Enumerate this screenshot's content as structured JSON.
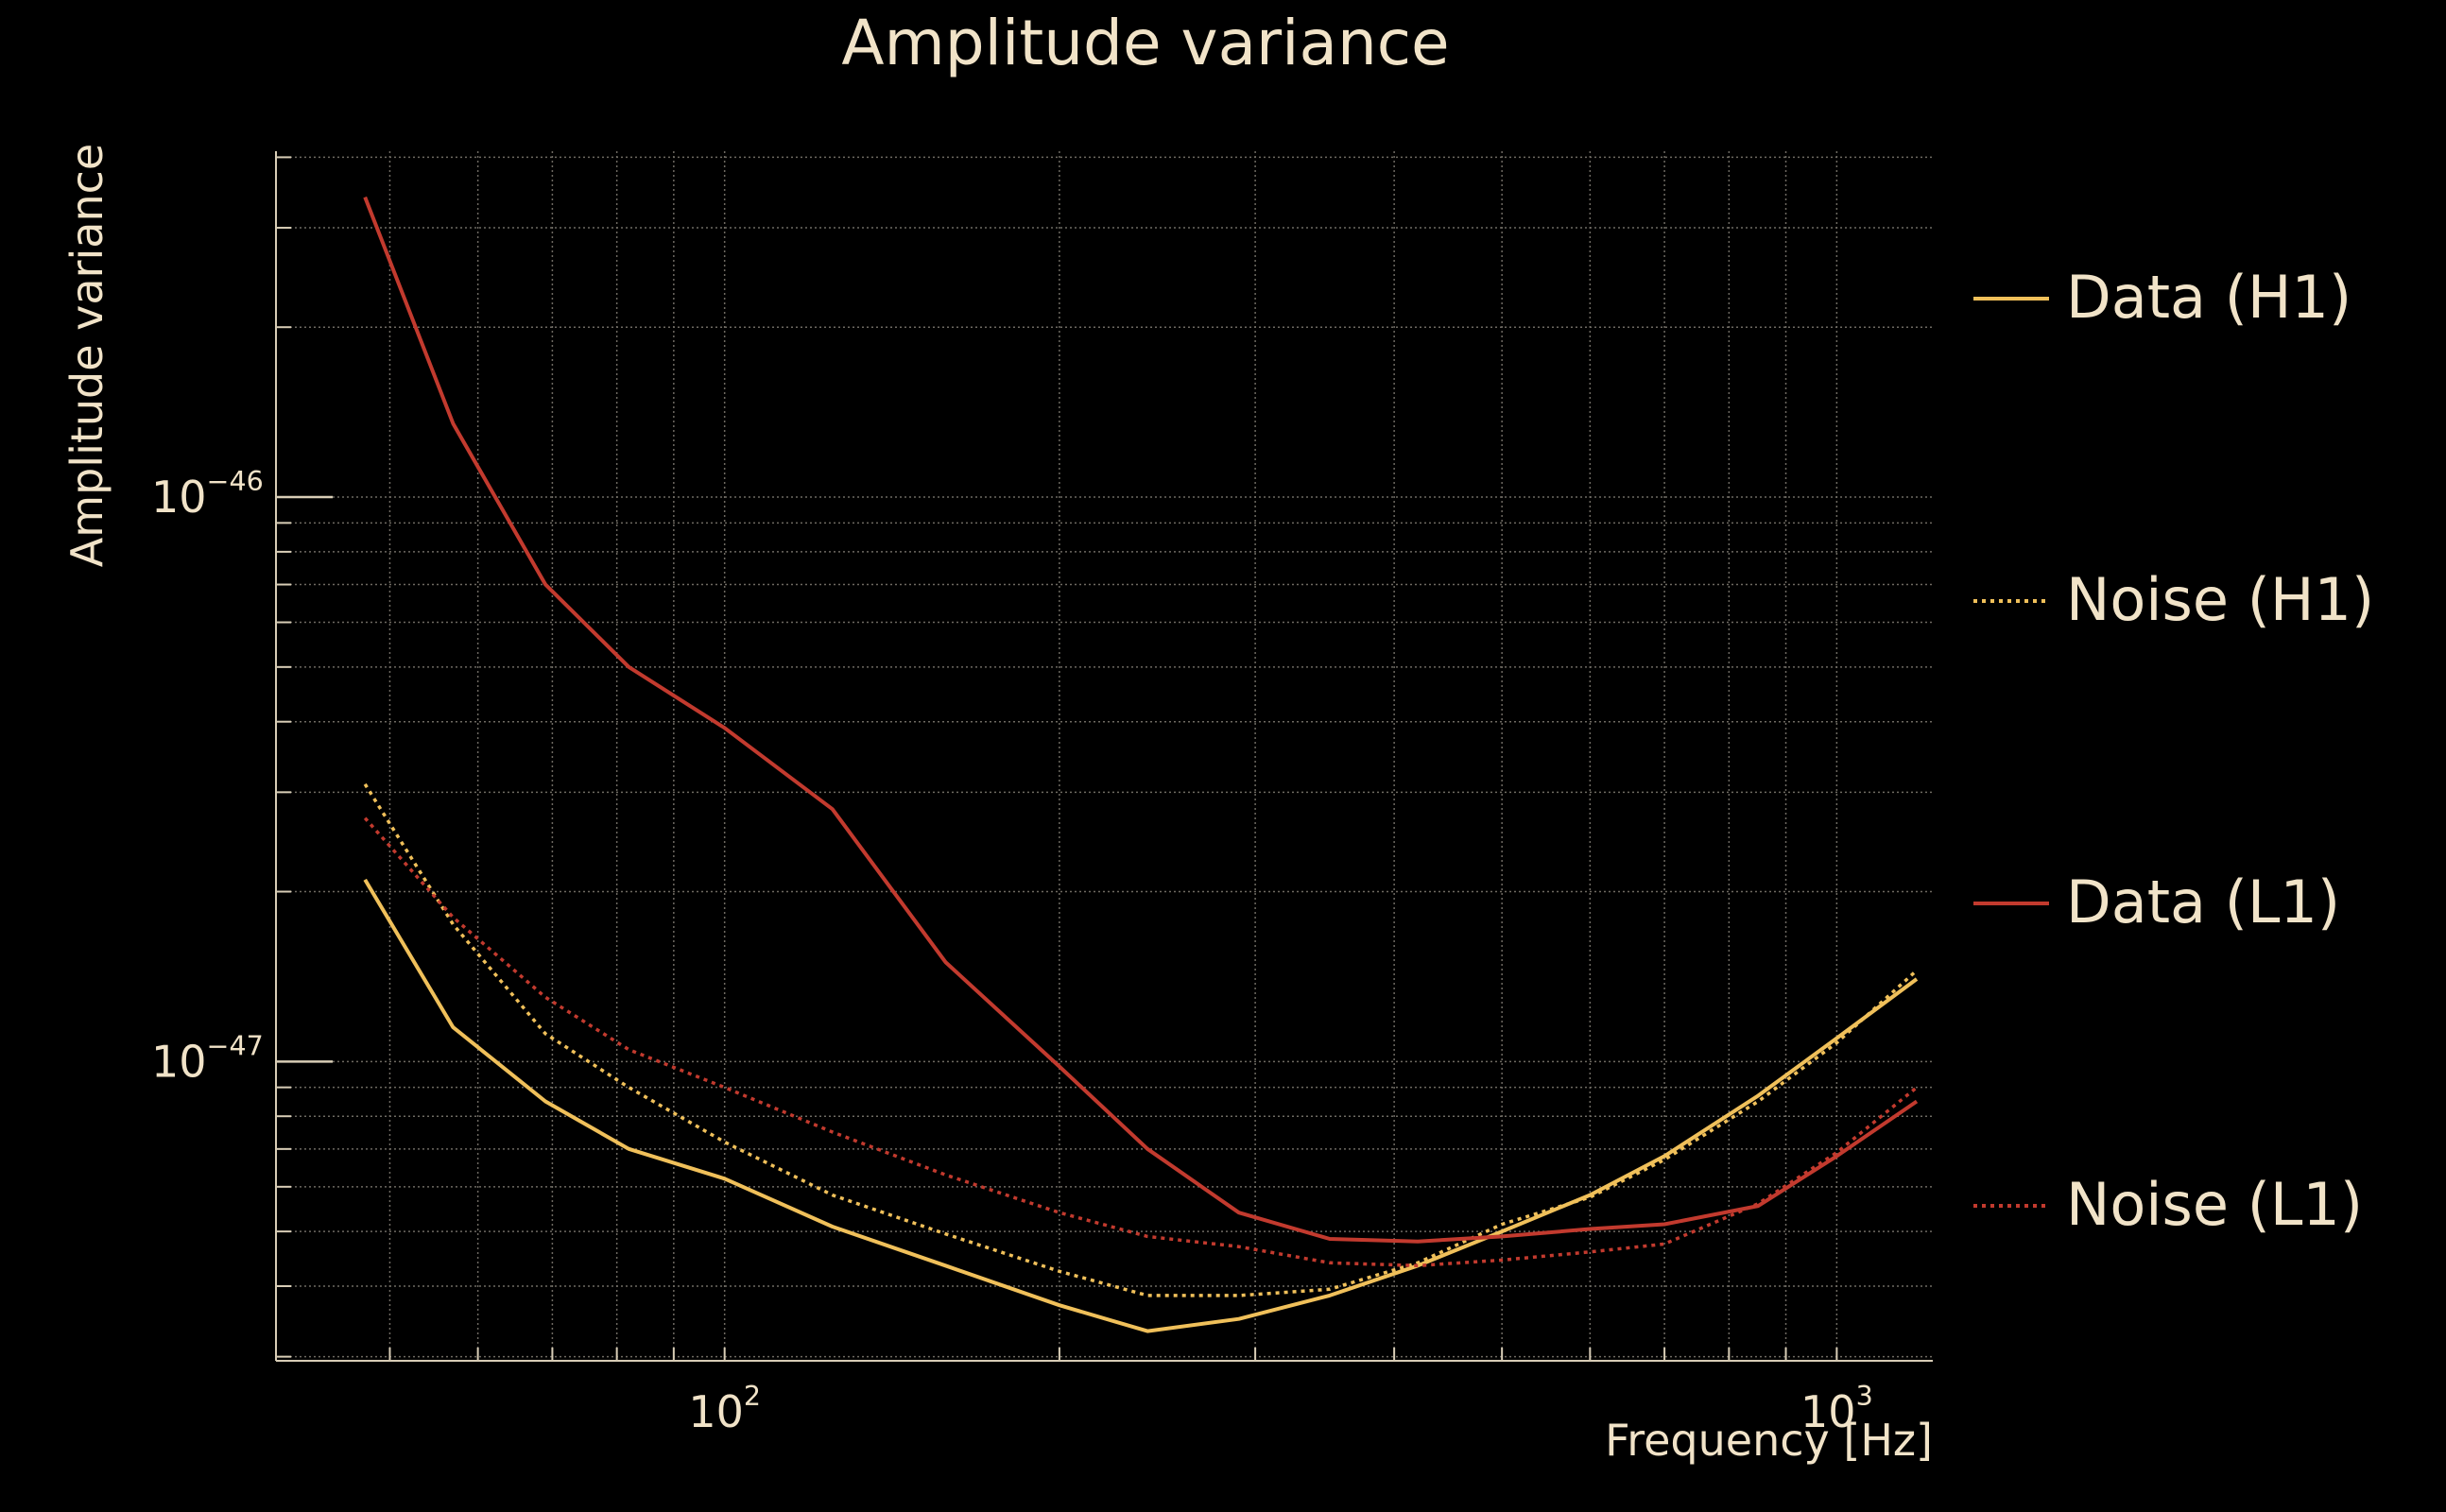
{
  "chart_data": {
    "type": "line",
    "title": "Amplitude variance",
    "xlabel": "Frequency [Hz]",
    "ylabel": "Amplitude variance",
    "x_scale": "log",
    "y_scale": "log",
    "xlim": [
      39.5,
      1220
    ],
    "ylim": [
      2.95e-48,
      4.1e-46
    ],
    "grid": true,
    "legend_position": "right",
    "x_major_ticks": [
      {
        "value": 100,
        "base": "10",
        "exp": "2"
      },
      {
        "value": 1000,
        "base": "10",
        "exp": "3"
      }
    ],
    "y_major_ticks": [
      {
        "value": 1e-47,
        "base": "10",
        "exp": "−47"
      },
      {
        "value": 1e-46,
        "base": "10",
        "exp": "−46"
      }
    ],
    "x_minor_ticks": [
      50,
      60,
      70,
      80,
      90,
      200,
      300,
      400,
      500,
      600,
      700,
      800,
      900
    ],
    "y_minor_ticks": [
      3e-48,
      4e-48,
      5e-48,
      6e-48,
      7e-48,
      8e-48,
      9e-48,
      2e-47,
      3e-47,
      4e-47,
      5e-47,
      6e-47,
      7e-47,
      8e-47,
      9e-47,
      2e-46,
      3e-46,
      4e-46
    ],
    "series": [
      {
        "name": "Data (H1)",
        "color": "#f0c05a",
        "dash": "solid",
        "x": [
          47.5,
          57,
          69,
          82,
          100,
          125,
          158,
          200,
          240,
          290,
          350,
          420,
          500,
          600,
          700,
          850,
          1000,
          1180
        ],
        "y": [
          2.1e-47,
          1.15e-47,
          8.5e-48,
          7e-48,
          6.2e-48,
          5.1e-48,
          4.35e-48,
          3.7e-48,
          3.33e-48,
          3.5e-48,
          3.85e-48,
          4.35e-48,
          5e-48,
          5.8e-48,
          6.8e-48,
          8.7e-48,
          1.1e-47,
          1.4e-47
        ]
      },
      {
        "name": "Noise (H1)",
        "color": "#f0c05a",
        "dash": "dotted",
        "x": [
          47.5,
          57,
          69,
          82,
          100,
          125,
          158,
          200,
          240,
          290,
          350,
          420,
          500,
          600,
          700,
          850,
          1000,
          1180
        ],
        "y": [
          3.1e-47,
          1.75e-47,
          1.12e-47,
          9e-48,
          7.2e-48,
          5.8e-48,
          4.95e-48,
          4.25e-48,
          3.85e-48,
          3.85e-48,
          3.95e-48,
          4.4e-48,
          5.15e-48,
          5.75e-48,
          6.7e-48,
          8.5e-48,
          1.08e-47,
          1.45e-47
        ]
      },
      {
        "name": "Data (L1)",
        "color": "#c23a2e",
        "dash": "solid",
        "x": [
          47.5,
          57,
          69,
          82,
          100,
          125,
          158,
          200,
          240,
          290,
          350,
          420,
          500,
          600,
          700,
          850,
          1000,
          1180
        ],
        "y": [
          3.4e-46,
          1.35e-46,
          7e-47,
          5e-47,
          3.9e-47,
          2.8e-47,
          1.5e-47,
          9.8e-48,
          7e-48,
          5.4e-48,
          4.85e-48,
          4.8e-48,
          4.9e-48,
          5.05e-48,
          5.15e-48,
          5.55e-48,
          6.8e-48,
          8.5e-48
        ]
      },
      {
        "name": "Noise (L1)",
        "color": "#c23a2e",
        "dash": "dotted",
        "x": [
          47.5,
          57,
          69,
          82,
          100,
          125,
          158,
          200,
          240,
          290,
          350,
          420,
          500,
          600,
          700,
          850,
          1000,
          1180
        ],
        "y": [
          2.7e-47,
          1.8e-47,
          1.3e-47,
          1.05e-47,
          9e-48,
          7.5e-48,
          6.3e-48,
          5.4e-48,
          4.9e-48,
          4.7e-48,
          4.4e-48,
          4.35e-48,
          4.45e-48,
          4.6e-48,
          4.75e-48,
          5.6e-48,
          6.9e-48,
          9e-48
        ]
      }
    ]
  }
}
